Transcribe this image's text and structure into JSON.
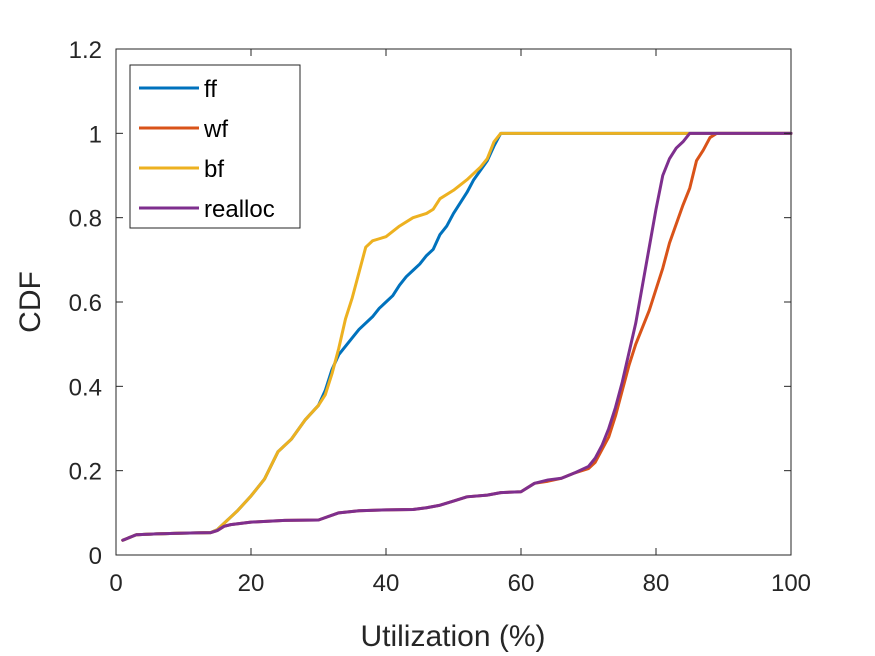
{
  "chart_data": {
    "type": "line",
    "title": "",
    "xlabel": "Utilization (%)",
    "ylabel": "CDF",
    "xlim": [
      0,
      100
    ],
    "ylim": [
      0,
      1.2
    ],
    "xticks": [
      "0",
      "20",
      "40",
      "60",
      "80",
      "100"
    ],
    "yticks": [
      "0",
      "0.2",
      "0.4",
      "0.6",
      "0.8",
      "1",
      "1.2"
    ],
    "grid": false,
    "legend_position": "top-left",
    "series": [
      {
        "name": "ff",
        "color": "#0072BD",
        "points": [
          [
            1,
            0.035
          ],
          [
            3,
            0.048
          ],
          [
            6,
            0.05
          ],
          [
            10,
            0.052
          ],
          [
            14,
            0.053
          ],
          [
            15,
            0.06
          ],
          [
            16,
            0.075
          ],
          [
            17,
            0.09
          ],
          [
            18,
            0.105
          ],
          [
            20,
            0.14
          ],
          [
            22,
            0.18
          ],
          [
            24,
            0.245
          ],
          [
            26,
            0.275
          ],
          [
            28,
            0.32
          ],
          [
            30,
            0.355
          ],
          [
            31,
            0.39
          ],
          [
            32,
            0.44
          ],
          [
            33,
            0.475
          ],
          [
            35,
            0.515
          ],
          [
            36,
            0.535
          ],
          [
            38,
            0.565
          ],
          [
            39,
            0.585
          ],
          [
            40,
            0.6
          ],
          [
            41,
            0.615
          ],
          [
            42,
            0.64
          ],
          [
            43,
            0.66
          ],
          [
            44,
            0.675
          ],
          [
            45,
            0.69
          ],
          [
            46,
            0.71
          ],
          [
            47,
            0.725
          ],
          [
            48,
            0.76
          ],
          [
            49,
            0.78
          ],
          [
            50,
            0.81
          ],
          [
            52,
            0.86
          ],
          [
            53,
            0.89
          ],
          [
            55,
            0.935
          ],
          [
            56,
            0.97
          ],
          [
            57,
            1.0
          ],
          [
            100,
            1.0
          ]
        ]
      },
      {
        "name": "wf",
        "color": "#D95319",
        "points": [
          [
            1,
            0.035
          ],
          [
            3,
            0.048
          ],
          [
            6,
            0.05
          ],
          [
            10,
            0.052
          ],
          [
            14,
            0.053
          ],
          [
            15,
            0.058
          ],
          [
            16,
            0.068
          ],
          [
            17,
            0.072
          ],
          [
            20,
            0.078
          ],
          [
            25,
            0.082
          ],
          [
            30,
            0.083
          ],
          [
            33,
            0.1
          ],
          [
            36,
            0.105
          ],
          [
            40,
            0.107
          ],
          [
            44,
            0.108
          ],
          [
            46,
            0.112
          ],
          [
            48,
            0.118
          ],
          [
            50,
            0.128
          ],
          [
            52,
            0.138
          ],
          [
            55,
            0.142
          ],
          [
            57,
            0.148
          ],
          [
            60,
            0.15
          ],
          [
            62,
            0.17
          ],
          [
            64,
            0.175
          ],
          [
            66,
            0.182
          ],
          [
            68,
            0.195
          ],
          [
            70,
            0.205
          ],
          [
            71,
            0.22
          ],
          [
            72,
            0.25
          ],
          [
            73,
            0.28
          ],
          [
            74,
            0.33
          ],
          [
            75,
            0.39
          ],
          [
            76,
            0.45
          ],
          [
            77,
            0.5
          ],
          [
            78,
            0.54
          ],
          [
            79,
            0.58
          ],
          [
            80,
            0.63
          ],
          [
            81,
            0.68
          ],
          [
            82,
            0.74
          ],
          [
            84,
            0.83
          ],
          [
            85,
            0.87
          ],
          [
            86,
            0.935
          ],
          [
            87,
            0.96
          ],
          [
            88,
            0.99
          ],
          [
            89,
            1.0
          ],
          [
            100,
            1.0
          ]
        ]
      },
      {
        "name": "bf",
        "color": "#EDB120",
        "points": [
          [
            1,
            0.035
          ],
          [
            3,
            0.048
          ],
          [
            6,
            0.05
          ],
          [
            10,
            0.052
          ],
          [
            14,
            0.053
          ],
          [
            15,
            0.06
          ],
          [
            16,
            0.075
          ],
          [
            17,
            0.09
          ],
          [
            18,
            0.105
          ],
          [
            20,
            0.14
          ],
          [
            22,
            0.18
          ],
          [
            24,
            0.245
          ],
          [
            26,
            0.275
          ],
          [
            28,
            0.32
          ],
          [
            30,
            0.355
          ],
          [
            31,
            0.38
          ],
          [
            32,
            0.43
          ],
          [
            33,
            0.49
          ],
          [
            34,
            0.56
          ],
          [
            35,
            0.61
          ],
          [
            36,
            0.67
          ],
          [
            37,
            0.73
          ],
          [
            38,
            0.745
          ],
          [
            39,
            0.75
          ],
          [
            40,
            0.755
          ],
          [
            42,
            0.78
          ],
          [
            44,
            0.8
          ],
          [
            46,
            0.81
          ],
          [
            47,
            0.82
          ],
          [
            48,
            0.845
          ],
          [
            50,
            0.865
          ],
          [
            52,
            0.89
          ],
          [
            54,
            0.92
          ],
          [
            55,
            0.94
          ],
          [
            56,
            0.98
          ],
          [
            57,
            1.0
          ],
          [
            100,
            1.0
          ]
        ]
      },
      {
        "name": "realloc",
        "color": "#7E2F8E",
        "points": [
          [
            1,
            0.035
          ],
          [
            3,
            0.048
          ],
          [
            6,
            0.05
          ],
          [
            10,
            0.052
          ],
          [
            14,
            0.053
          ],
          [
            15,
            0.058
          ],
          [
            16,
            0.068
          ],
          [
            17,
            0.072
          ],
          [
            20,
            0.078
          ],
          [
            25,
            0.082
          ],
          [
            30,
            0.083
          ],
          [
            33,
            0.1
          ],
          [
            36,
            0.105
          ],
          [
            40,
            0.107
          ],
          [
            44,
            0.108
          ],
          [
            46,
            0.112
          ],
          [
            48,
            0.118
          ],
          [
            50,
            0.128
          ],
          [
            52,
            0.138
          ],
          [
            55,
            0.142
          ],
          [
            57,
            0.148
          ],
          [
            60,
            0.15
          ],
          [
            62,
            0.17
          ],
          [
            64,
            0.178
          ],
          [
            66,
            0.182
          ],
          [
            68,
            0.195
          ],
          [
            70,
            0.21
          ],
          [
            71,
            0.23
          ],
          [
            72,
            0.26
          ],
          [
            73,
            0.3
          ],
          [
            74,
            0.35
          ],
          [
            75,
            0.41
          ],
          [
            76,
            0.48
          ],
          [
            77,
            0.55
          ],
          [
            78,
            0.64
          ],
          [
            79,
            0.73
          ],
          [
            80,
            0.82
          ],
          [
            81,
            0.9
          ],
          [
            82,
            0.94
          ],
          [
            83,
            0.965
          ],
          [
            84,
            0.98
          ],
          [
            85,
            1.0
          ],
          [
            100,
            1.0
          ]
        ]
      }
    ]
  }
}
